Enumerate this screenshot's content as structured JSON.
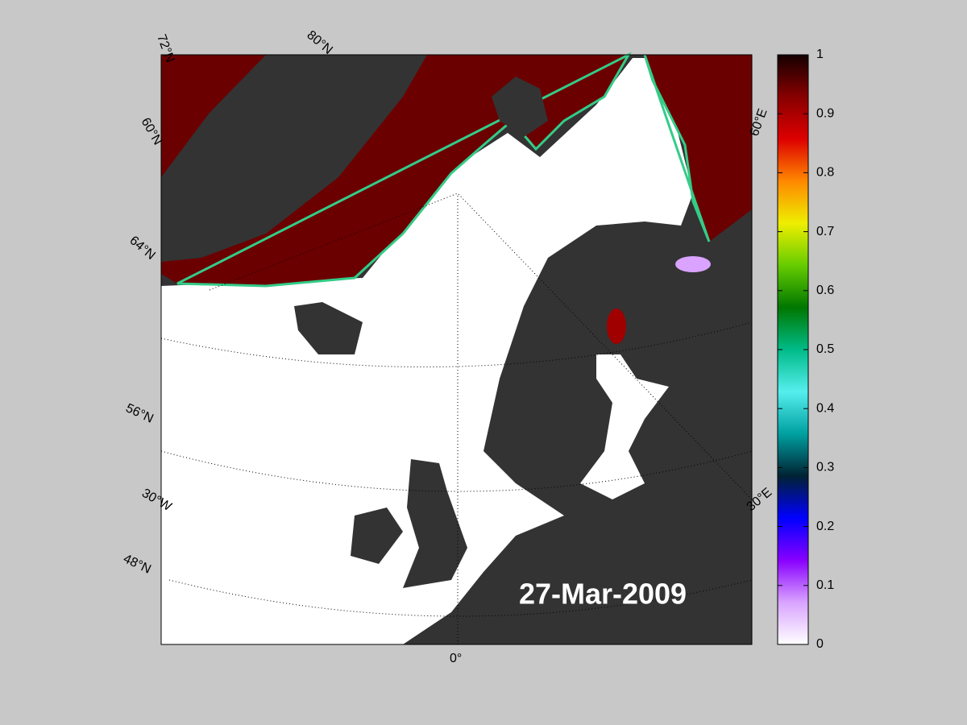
{
  "map": {
    "date": "27-Mar-2009",
    "grid_labels": {
      "lat_72n": "72°N",
      "lat_80n": "80°N",
      "lat_60n": "60°N",
      "lat_64n": "64°N",
      "lat_56n": "56°N",
      "lon_30w": "30°W",
      "lat_48n": "48°N",
      "lon_0": "0°",
      "lon_60e": "60°E",
      "lon_30e": "30°E"
    }
  },
  "colorbar": {
    "range": [
      0,
      1
    ],
    "ticks": [
      0,
      0.1,
      0.2,
      0.3,
      0.4,
      0.5,
      0.6,
      0.7,
      0.8,
      0.9,
      1
    ],
    "colors": [
      "#ffffff",
      "#d9a3ff",
      "#8800ff",
      "#0000ff",
      "#002233",
      "#00a0a0",
      "#55eeee",
      "#00bb88",
      "#007700",
      "#66cc00",
      "#eeee00",
      "#ff8800",
      "#dd0000",
      "#880000",
      "#150000"
    ]
  }
}
